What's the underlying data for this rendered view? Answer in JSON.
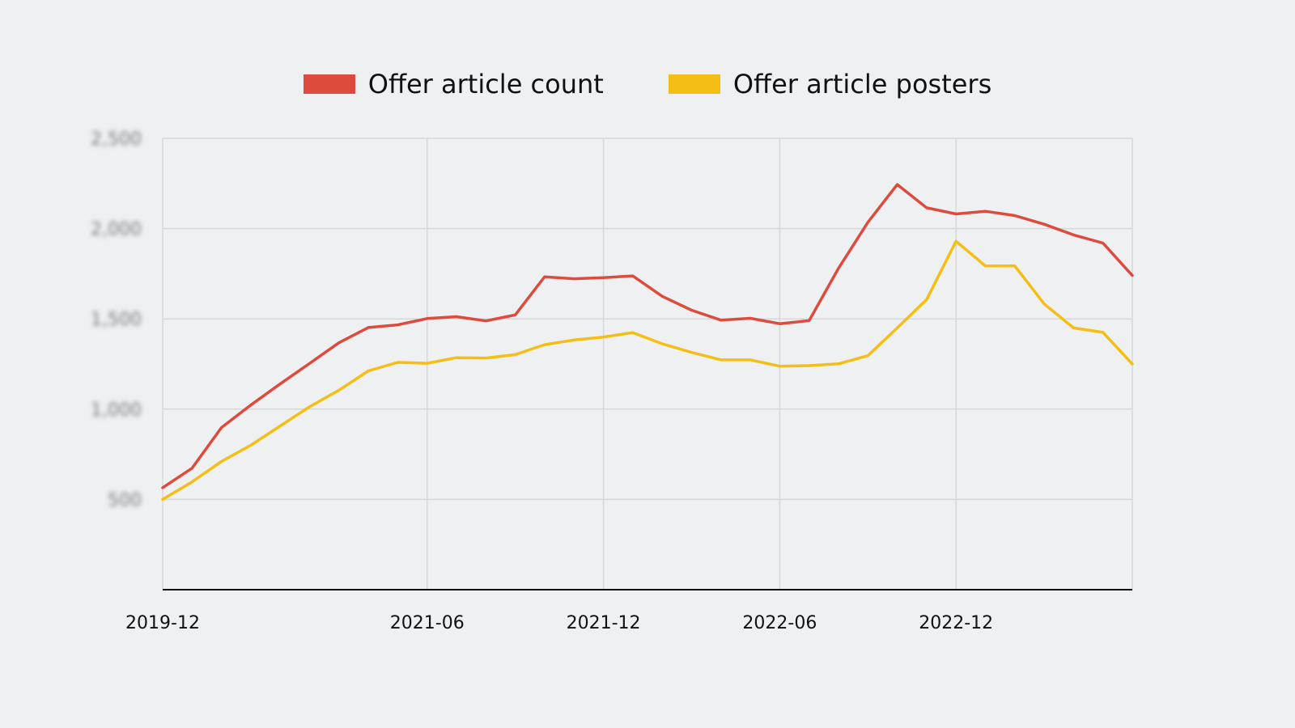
{
  "chart_data": {
    "type": "line",
    "title": "",
    "xlabel": "",
    "ylabel": "",
    "legend_position": "top-center",
    "grid": true,
    "x_tick_labels": [
      "2019-12",
      "2021-06",
      "2021-12",
      "2022-06",
      "2022-12"
    ],
    "y_tick_labels": [
      "500",
      "1,000",
      "1,500",
      "2,000",
      "2,500"
    ],
    "ylim": [
      0,
      2500
    ],
    "x_categories": [
      "2019-12",
      "",
      "",
      "",
      "",
      "",
      "",
      "",
      "",
      "2021-06",
      "",
      "",
      "",
      "",
      "",
      "2021-12",
      "",
      "",
      "",
      "",
      "",
      "2022-06",
      "",
      "",
      "",
      "",
      "",
      "2022-12",
      "",
      "",
      "",
      "",
      "",
      ""
    ],
    "series": [
      {
        "name": "Offer article count",
        "color": "#dd4b3e",
        "values": [
          565,
          673,
          898,
          1023,
          1140,
          1253,
          1368,
          1452,
          1467,
          1502,
          1512,
          1489,
          1522,
          1733,
          1722,
          1728,
          1738,
          1625,
          1548,
          1493,
          1503,
          1473,
          1490,
          1780,
          2035,
          2244,
          2115,
          2081,
          2096,
          2072,
          2024,
          1965,
          1920,
          1740
        ]
      },
      {
        "name": "Offer article posters",
        "color": "#f4be15",
        "values": [
          500,
          597,
          710,
          800,
          907,
          1013,
          1105,
          1212,
          1259,
          1254,
          1285,
          1283,
          1302,
          1357,
          1383,
          1399,
          1424,
          1362,
          1314,
          1273,
          1273,
          1238,
          1241,
          1251,
          1296,
          1450,
          1607,
          1930,
          1793,
          1793,
          1583,
          1450,
          1425,
          1250
        ]
      }
    ]
  }
}
